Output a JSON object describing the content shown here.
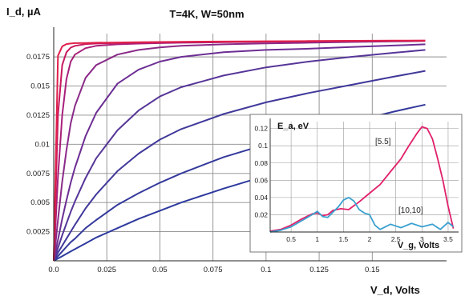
{
  "chart_data": [
    {
      "type": "line",
      "title": "T=4K, W=50nm",
      "xlabel": "V_d, Volts",
      "ylabel": "I_d, µA",
      "xlim": [
        0,
        0.185
      ],
      "ylim": [
        0,
        0.0195
      ],
      "grid": true,
      "xticks": [
        "0.0",
        "0.025",
        "0.05",
        "0.075",
        "0.1",
        "0.125",
        "0.15"
      ],
      "yticks": [
        "0.0025",
        "0.005",
        "0.0075",
        "0.01",
        "0.0125",
        "0.015",
        "0.0175"
      ],
      "x": [
        0,
        0.002,
        0.004,
        0.006,
        0.008,
        0.01,
        0.015,
        0.02,
        0.03,
        0.04,
        0.05,
        0.06,
        0.08,
        0.1,
        0.12,
        0.14,
        0.16,
        0.175
      ],
      "series": [
        {
          "color": "#e0204a",
          "values": [
            0,
            0.0176,
            0.0184,
            0.0186,
            0.01865,
            0.01868,
            0.0187,
            0.01872,
            0.01874,
            0.01876,
            0.01878,
            0.0188,
            0.01882,
            0.01884,
            0.01886,
            0.01888,
            0.0189,
            0.0189
          ]
        },
        {
          "color": "#c8185e",
          "values": [
            0,
            0.0125,
            0.0168,
            0.0179,
            0.0183,
            0.01845,
            0.0186,
            0.01865,
            0.0187,
            0.01873,
            0.01876,
            0.01878,
            0.0188,
            0.01882,
            0.01884,
            0.01886,
            0.01888,
            0.01889
          ]
        },
        {
          "color": "#a8207a",
          "values": [
            0,
            0.0072,
            0.0125,
            0.0156,
            0.0171,
            0.0177,
            0.01825,
            0.01845,
            0.01858,
            0.01864,
            0.01868,
            0.01872,
            0.01876,
            0.0188,
            0.01883,
            0.01886,
            0.01888,
            0.01889
          ]
        },
        {
          "color": "#8a2a88",
          "values": [
            0,
            0.0035,
            0.0068,
            0.0095,
            0.0118,
            0.0133,
            0.0157,
            0.0168,
            0.0177,
            0.0181,
            0.01832,
            0.01845,
            0.01858,
            0.01866,
            0.01872,
            0.01878,
            0.01883,
            0.01886
          ]
        },
        {
          "color": "#6c2e94",
          "values": [
            0,
            0.0018,
            0.0036,
            0.0052,
            0.0067,
            0.008,
            0.0107,
            0.0127,
            0.0152,
            0.0164,
            0.0171,
            0.0175,
            0.0179,
            0.0181,
            0.0182,
            0.01835,
            0.01848,
            0.01858
          ]
        },
        {
          "color": "#563598",
          "values": [
            0,
            0.0011,
            0.0022,
            0.0032,
            0.0042,
            0.0051,
            0.0071,
            0.0088,
            0.0112,
            0.0129,
            0.0141,
            0.0149,
            0.0159,
            0.0166,
            0.0171,
            0.0175,
            0.01785,
            0.0181
          ]
        },
        {
          "color": "#40389a",
          "values": [
            0,
            0.0007,
            0.0013,
            0.0019,
            0.0025,
            0.0031,
            0.0045,
            0.0057,
            0.0077,
            0.0092,
            0.0104,
            0.0113,
            0.0126,
            0.0136,
            0.0144,
            0.0151,
            0.0158,
            0.0163
          ]
        },
        {
          "color": "#34399c",
          "values": [
            0,
            0.0004,
            0.0008,
            0.0012,
            0.0016,
            0.0019,
            0.0028,
            0.0035,
            0.0048,
            0.0058,
            0.0067,
            0.0075,
            0.0089,
            0.01,
            0.011,
            0.0119,
            0.0128,
            0.0134
          ]
        },
        {
          "color": "#2e3a9e",
          "values": [
            0,
            0.0002,
            0.0004,
            0.0006,
            0.0008,
            0.001,
            0.0015,
            0.002,
            0.0028,
            0.0036,
            0.0043,
            0.005,
            0.0062,
            0.0073,
            0.0083,
            0.0092,
            0.01,
            0.0106
          ]
        }
      ]
    },
    {
      "type": "line",
      "title": "",
      "xlabel": "V_g, Volts",
      "ylabel": "E_a, eV",
      "xlim": [
        0.1,
        3.7
      ],
      "ylim": [
        0,
        0.128
      ],
      "grid": true,
      "xticks": [
        "0.5",
        "1",
        "1.5",
        "2",
        "2.5",
        "3",
        "3.5"
      ],
      "yticks": [
        "0.02",
        "0.04",
        "0.06",
        "0.08",
        "0.1",
        "0.12"
      ],
      "series": [
        {
          "name": "[5.5]",
          "color": "#e0206a",
          "x": [
            0.1,
            0.3,
            0.5,
            0.7,
            0.9,
            1.0,
            1.1,
            1.2,
            1.3,
            1.45,
            1.6,
            1.8,
            2.0,
            2.2,
            2.4,
            2.6,
            2.75,
            2.9,
            3.0,
            3.1,
            3.2,
            3.3,
            3.4,
            3.5,
            3.6
          ],
          "y": [
            0.001,
            0.003,
            0.008,
            0.015,
            0.021,
            0.022,
            0.019,
            0.02,
            0.025,
            0.027,
            0.026,
            0.035,
            0.045,
            0.055,
            0.07,
            0.085,
            0.1,
            0.114,
            0.122,
            0.12,
            0.108,
            0.085,
            0.06,
            0.03,
            0.004
          ]
        },
        {
          "name": "[10,10]",
          "color": "#3aa0d0",
          "x": [
            0.1,
            0.3,
            0.5,
            0.7,
            0.9,
            1.0,
            1.1,
            1.2,
            1.3,
            1.4,
            1.5,
            1.6,
            1.7,
            1.8,
            1.9,
            2.0,
            2.1,
            2.2,
            2.4,
            2.6,
            2.8,
            3.0,
            3.2,
            3.35,
            3.5,
            3.6
          ],
          "y": [
            0.0,
            0.002,
            0.006,
            0.013,
            0.02,
            0.024,
            0.018,
            0.017,
            0.023,
            0.029,
            0.037,
            0.04,
            0.036,
            0.026,
            0.022,
            0.02,
            0.008,
            0.003,
            0.009,
            0.005,
            0.01,
            0.006,
            0.009,
            0.003,
            0.011,
            0.006
          ]
        }
      ]
    }
  ]
}
